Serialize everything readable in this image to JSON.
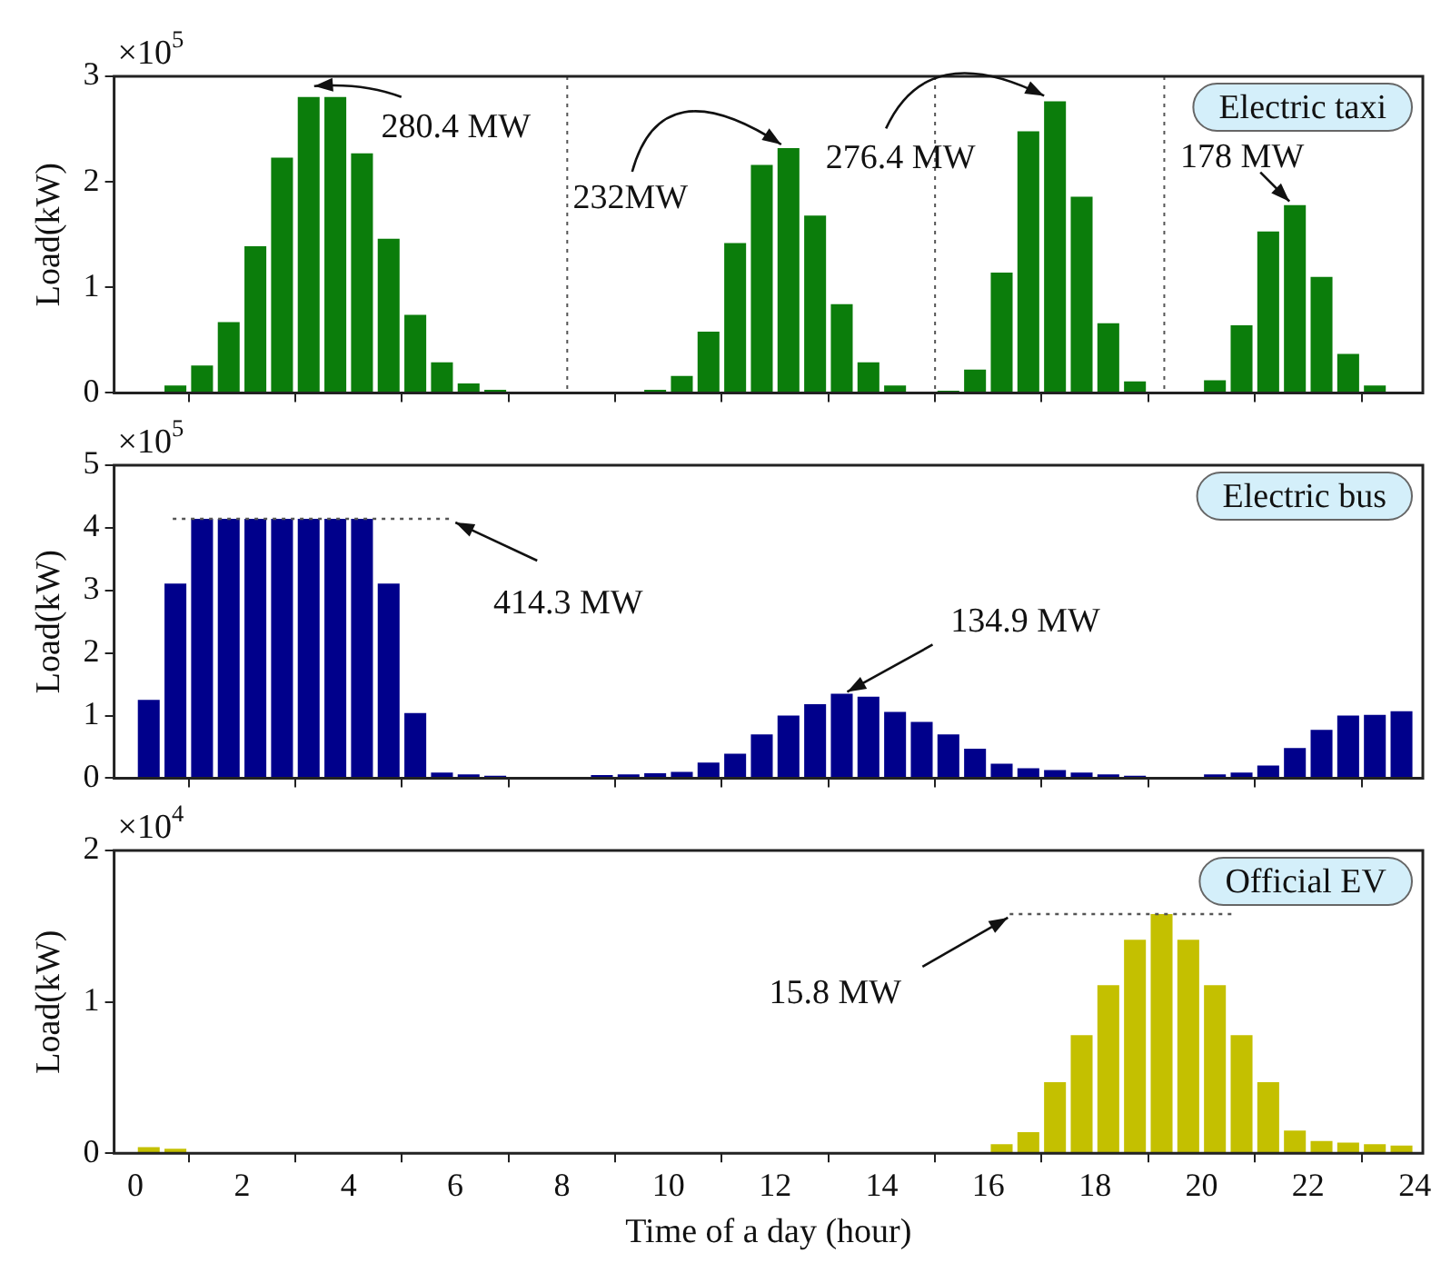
{
  "chart_data": [
    {
      "type": "bar",
      "ylabel": "Load(kW)",
      "xlim": [
        -0.4,
        24.15
      ],
      "xticks": [
        0,
        2,
        4,
        6,
        8,
        10,
        12,
        14,
        16,
        18,
        20,
        22,
        24
      ],
      "ylim": [
        0,
        3
      ],
      "yticks": [
        0,
        1,
        2,
        3
      ],
      "tick_labels": "y",
      "legend": "top right",
      "x": [
        0.25,
        0.75,
        1.25,
        1.75,
        2.25,
        2.75,
        3.25,
        3.75,
        4.25,
        4.75,
        5.25,
        5.75,
        6.25,
        6.75,
        7.25,
        7.75,
        8.25,
        8.75,
        9.25,
        9.75,
        10.25,
        10.75,
        11.25,
        11.75,
        12.25,
        12.75,
        13.25,
        13.75,
        14.25,
        14.75,
        15.25,
        15.75,
        16.25,
        16.75,
        17.25,
        17.75,
        18.25,
        18.75,
        19.25,
        19.75,
        20.25,
        20.75,
        21.25,
        21.75,
        22.25,
        22.75,
        23.25,
        23.75
      ],
      "series": [
        {
          "name": "Electric taxi",
          "color": "#0b7d0b",
          "values": [
            0.01,
            0.07,
            0.26,
            0.67,
            1.39,
            2.23,
            2.804,
            2.804,
            2.27,
            1.46,
            0.74,
            0.29,
            0.09,
            0.03,
            0,
            0,
            0,
            0,
            0,
            0.03,
            0.16,
            0.58,
            1.42,
            2.16,
            2.32,
            1.68,
            0.84,
            0.29,
            0.07,
            0,
            0.02,
            0.22,
            1.14,
            2.48,
            2.764,
            1.86,
            0.66,
            0.11,
            0,
            0,
            0.12,
            0.64,
            1.53,
            1.78,
            1.1,
            0.37,
            0.07,
            0
          ]
        }
      ],
      "ref_lines": [
        {
          "axis": "x",
          "value": 8.1,
          "line_style": "dotted"
        },
        {
          "axis": "x",
          "value": 15,
          "line_style": "dotted"
        },
        {
          "axis": "x",
          "value": 19.3,
          "line_style": "dotted"
        }
      ],
      "annotations": [
        "×10$^{5}$",
        {
          "text": "280.4 MW",
          "x": 3.25,
          "y": 2.804
        },
        {
          "text": "232MW",
          "x": 12.25,
          "y": 2.32
        },
        {
          "text": "276.4 MW",
          "x": 17.25,
          "y": 2.764
        },
        {
          "text": "178 MW",
          "x": 21.75,
          "y": 1.78
        }
      ]
    },
    {
      "type": "bar",
      "ylabel": "Load(kW)",
      "xlim": [
        -0.4,
        24.15
      ],
      "xticks": [
        0,
        2,
        4,
        6,
        8,
        10,
        12,
        14,
        16,
        18,
        20,
        22,
        24
      ],
      "ylim": [
        0,
        5
      ],
      "yticks": [
        0,
        1,
        2,
        3,
        4,
        5
      ],
      "tick_labels": "y",
      "legend": "top right",
      "x": [
        0.25,
        0.75,
        1.25,
        1.75,
        2.25,
        2.75,
        3.25,
        3.75,
        4.25,
        4.75,
        5.25,
        5.75,
        6.25,
        6.75,
        7.25,
        7.75,
        8.25,
        8.75,
        9.25,
        9.75,
        10.25,
        10.75,
        11.25,
        11.75,
        12.25,
        12.75,
        13.25,
        13.75,
        14.25,
        14.75,
        15.25,
        15.75,
        16.25,
        16.75,
        17.25,
        17.75,
        18.25,
        18.75,
        19.25,
        19.75,
        20.25,
        20.75,
        21.25,
        21.75,
        22.25,
        22.75,
        23.25,
        23.75
      ],
      "series": [
        {
          "name": "Electric bus",
          "color": "#00008b",
          "values": [
            1.25,
            3.11,
            4.143,
            4.143,
            4.143,
            4.143,
            4.143,
            4.143,
            4.143,
            3.11,
            1.04,
            0.09,
            0.06,
            0.04,
            0.02,
            0.02,
            0.02,
            0.05,
            0.06,
            0.08,
            0.1,
            0.25,
            0.39,
            0.7,
            1,
            1.18,
            1.349,
            1.3,
            1.06,
            0.9,
            0.7,
            0.47,
            0.23,
            0.16,
            0.13,
            0.09,
            0.06,
            0.04,
            0.02,
            0.01,
            0.06,
            0.09,
            0.2,
            0.48,
            0.77,
            1,
            1.01,
            1.07
          ]
        },
        {
          "type": "line",
          "color": "#555555",
          "line_style": "dotted",
          "x": [
            0.7,
            5.9
          ],
          "values": [
            4.143,
            4.143
          ]
        }
      ],
      "annotations": [
        "×10$^{5}$",
        {
          "text": "414.3 MW",
          "x": 5.9,
          "y": 4.143
        },
        {
          "text": "134.9 MW",
          "x": 13.25,
          "y": 1.349
        }
      ]
    },
    {
      "type": "bar",
      "xlabel": "Time of a day (hour)",
      "ylabel": "Load(kW)",
      "xlim": [
        -0.4,
        24.15
      ],
      "xticks": [
        0,
        2,
        4,
        6,
        8,
        10,
        12,
        14,
        16,
        18,
        20,
        22,
        24
      ],
      "ylim": [
        0,
        2
      ],
      "yticks": [
        0,
        1,
        2
      ],
      "legend": "top right",
      "x": [
        0.25,
        0.75,
        1.25,
        1.75,
        2.25,
        2.75,
        3.25,
        3.75,
        4.25,
        4.75,
        5.25,
        5.75,
        6.25,
        6.75,
        7.25,
        7.75,
        8.25,
        8.75,
        9.25,
        9.75,
        10.25,
        10.75,
        11.25,
        11.75,
        12.25,
        12.75,
        13.25,
        13.75,
        14.25,
        14.75,
        15.25,
        15.75,
        16.25,
        16.75,
        17.25,
        17.75,
        18.25,
        18.75,
        19.25,
        19.75,
        20.25,
        20.75,
        21.25,
        21.75,
        22.25,
        22.75,
        23.25,
        23.75
      ],
      "series": [
        {
          "name": "Official EV",
          "color": "#c4c000",
          "values": [
            0.04,
            0.03,
            0,
            0,
            0,
            0,
            0,
            0,
            0,
            0,
            0,
            0,
            0,
            0,
            0,
            0,
            0,
            0,
            0,
            0,
            0,
            0,
            0,
            0,
            0,
            0,
            0,
            0,
            0,
            0,
            0,
            0,
            0.06,
            0.14,
            0.47,
            0.78,
            1.11,
            1.41,
            1.58,
            1.41,
            1.11,
            0.78,
            0.47,
            0.15,
            0.08,
            0.07,
            0.06,
            0.05
          ]
        },
        {
          "type": "line",
          "color": "#555555",
          "line_style": "dotted",
          "x": [
            16.4,
            20.6
          ],
          "values": [
            1.58,
            1.58
          ]
        }
      ],
      "annotations": [
        "×10$^{4}$",
        {
          "text": "15.8 MW",
          "x": 16.4,
          "y": 1.58
        }
      ]
    }
  ]
}
